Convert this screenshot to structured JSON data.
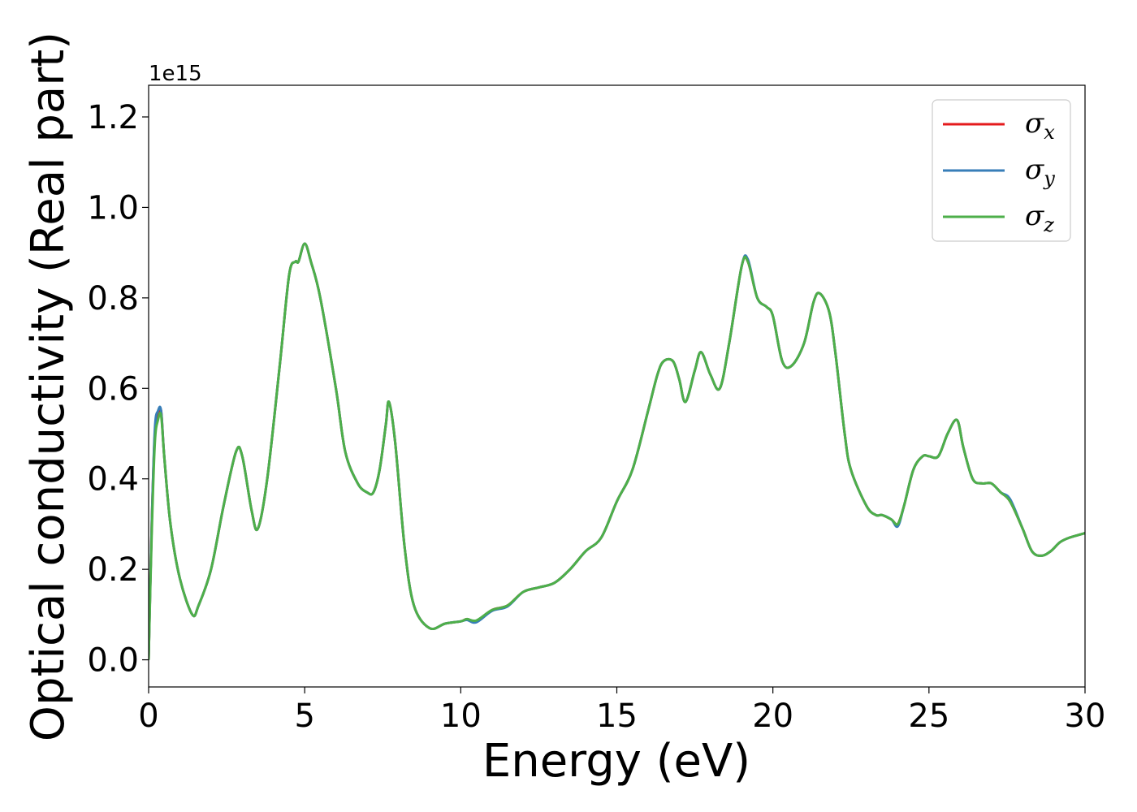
{
  "chart_data": {
    "type": "line",
    "title": "",
    "xlabel": "Energy (eV)",
    "ylabel": "Optical conductivity (Real part)",
    "y_offset_label": "1e15",
    "xlim": [
      0,
      30
    ],
    "ylim": [
      -0.06,
      1.27
    ],
    "x_ticks": [
      0,
      5,
      10,
      15,
      20,
      25,
      30
    ],
    "x_tick_labels": [
      "0",
      "5",
      "10",
      "15",
      "20",
      "25",
      "30"
    ],
    "y_ticks": [
      0.0,
      0.2,
      0.4,
      0.6,
      0.8,
      1.0,
      1.2
    ],
    "y_tick_labels": [
      "0.0",
      "0.2",
      "0.4",
      "0.6",
      "0.8",
      "1.0",
      "1.2"
    ],
    "grid": false,
    "legend_position": "top-right",
    "series": [
      {
        "name": "σ",
        "subscript": "x",
        "color": "#e41a1c",
        "x": [
          0,
          0.1,
          0.2,
          0.3,
          0.4,
          0.5,
          0.7,
          1.0,
          1.4,
          1.6,
          2.0,
          2.4,
          2.8,
          3.0,
          3.3,
          3.5,
          3.8,
          4.2,
          4.5,
          4.7,
          4.8,
          5.0,
          5.2,
          5.5,
          6.0,
          6.3,
          6.7,
          7.0,
          7.2,
          7.4,
          7.6,
          7.7,
          7.9,
          8.2,
          8.5,
          9.0,
          9.5,
          10.0,
          10.2,
          10.5,
          11.0,
          11.5,
          12.0,
          12.5,
          13.0,
          13.5,
          14.0,
          14.5,
          15.0,
          15.5,
          16.0,
          16.3,
          16.5,
          16.8,
          17.0,
          17.2,
          17.5,
          17.7,
          18.0,
          18.3,
          18.6,
          19.0,
          19.2,
          19.5,
          19.8,
          20.0,
          20.3,
          20.6,
          21.0,
          21.3,
          21.5,
          21.8,
          22.0,
          22.3,
          22.5,
          23.0,
          23.3,
          23.5,
          23.8,
          24.0,
          24.2,
          24.5,
          24.8,
          25.0,
          25.3,
          25.6,
          25.9,
          26.1,
          26.4,
          26.7,
          27.0,
          27.3,
          27.6,
          28.0,
          28.3,
          28.6,
          28.9,
          29.2,
          29.5,
          30.0
        ],
        "y": [
          0.0,
          0.3,
          0.5,
          0.54,
          0.55,
          0.45,
          0.3,
          0.18,
          0.1,
          0.12,
          0.2,
          0.34,
          0.46,
          0.45,
          0.33,
          0.29,
          0.4,
          0.65,
          0.85,
          0.88,
          0.88,
          0.92,
          0.88,
          0.8,
          0.6,
          0.46,
          0.39,
          0.37,
          0.37,
          0.42,
          0.52,
          0.57,
          0.48,
          0.25,
          0.12,
          0.07,
          0.08,
          0.085,
          0.09,
          0.085,
          0.11,
          0.12,
          0.15,
          0.16,
          0.17,
          0.2,
          0.24,
          0.27,
          0.35,
          0.42,
          0.55,
          0.63,
          0.66,
          0.66,
          0.62,
          0.57,
          0.64,
          0.68,
          0.63,
          0.6,
          0.7,
          0.87,
          0.88,
          0.8,
          0.78,
          0.76,
          0.66,
          0.65,
          0.7,
          0.79,
          0.81,
          0.77,
          0.68,
          0.5,
          0.42,
          0.34,
          0.32,
          0.32,
          0.31,
          0.3,
          0.34,
          0.42,
          0.45,
          0.45,
          0.45,
          0.5,
          0.53,
          0.47,
          0.4,
          0.39,
          0.39,
          0.37,
          0.35,
          0.29,
          0.24,
          0.23,
          0.24,
          0.26,
          0.27,
          0.28
        ]
      },
      {
        "name": "σ",
        "subscript": "y",
        "color": "#377eb8",
        "x": [
          0,
          0.1,
          0.2,
          0.3,
          0.4,
          0.5,
          0.7,
          1.0,
          1.4,
          1.6,
          2.0,
          2.4,
          2.8,
          3.0,
          3.3,
          3.5,
          3.8,
          4.2,
          4.5,
          4.7,
          4.8,
          5.0,
          5.2,
          5.5,
          6.0,
          6.3,
          6.7,
          7.0,
          7.2,
          7.4,
          7.6,
          7.7,
          7.9,
          8.2,
          8.5,
          9.0,
          9.5,
          10.0,
          10.2,
          10.5,
          11.0,
          11.5,
          12.0,
          12.5,
          13.0,
          13.5,
          14.0,
          14.5,
          15.0,
          15.5,
          16.0,
          16.3,
          16.5,
          16.8,
          17.0,
          17.2,
          17.5,
          17.7,
          18.0,
          18.3,
          18.6,
          19.0,
          19.2,
          19.5,
          19.8,
          20.0,
          20.3,
          20.6,
          21.0,
          21.3,
          21.5,
          21.8,
          22.0,
          22.3,
          22.5,
          23.0,
          23.3,
          23.5,
          23.8,
          24.0,
          24.2,
          24.5,
          24.8,
          25.0,
          25.3,
          25.6,
          25.9,
          26.1,
          26.4,
          26.7,
          27.0,
          27.3,
          27.6,
          28.0,
          28.3,
          28.6,
          28.9,
          29.2,
          29.5,
          30.0
        ],
        "y": [
          0.0,
          0.3,
          0.51,
          0.55,
          0.55,
          0.45,
          0.3,
          0.18,
          0.1,
          0.12,
          0.2,
          0.34,
          0.46,
          0.45,
          0.33,
          0.29,
          0.4,
          0.65,
          0.85,
          0.88,
          0.88,
          0.92,
          0.88,
          0.8,
          0.6,
          0.46,
          0.39,
          0.37,
          0.37,
          0.42,
          0.52,
          0.57,
          0.48,
          0.25,
          0.12,
          0.07,
          0.08,
          0.085,
          0.088,
          0.083,
          0.108,
          0.118,
          0.15,
          0.16,
          0.17,
          0.2,
          0.24,
          0.27,
          0.35,
          0.42,
          0.55,
          0.63,
          0.66,
          0.66,
          0.62,
          0.57,
          0.64,
          0.68,
          0.63,
          0.6,
          0.7,
          0.87,
          0.885,
          0.8,
          0.78,
          0.76,
          0.66,
          0.65,
          0.7,
          0.79,
          0.81,
          0.77,
          0.68,
          0.5,
          0.42,
          0.34,
          0.32,
          0.32,
          0.31,
          0.295,
          0.34,
          0.42,
          0.45,
          0.45,
          0.45,
          0.5,
          0.53,
          0.47,
          0.4,
          0.39,
          0.39,
          0.37,
          0.355,
          0.29,
          0.24,
          0.23,
          0.24,
          0.26,
          0.27,
          0.28
        ]
      },
      {
        "name": "σ",
        "subscript": "z",
        "color": "#4daf4a",
        "x": [
          0,
          0.1,
          0.2,
          0.3,
          0.4,
          0.5,
          0.7,
          1.0,
          1.4,
          1.6,
          2.0,
          2.4,
          2.8,
          3.0,
          3.3,
          3.5,
          3.8,
          4.2,
          4.5,
          4.7,
          4.8,
          5.0,
          5.2,
          5.5,
          6.0,
          6.3,
          6.7,
          7.0,
          7.2,
          7.4,
          7.6,
          7.7,
          7.9,
          8.2,
          8.5,
          9.0,
          9.5,
          10.0,
          10.2,
          10.5,
          11.0,
          11.5,
          12.0,
          12.5,
          13.0,
          13.5,
          14.0,
          14.5,
          15.0,
          15.5,
          16.0,
          16.3,
          16.5,
          16.8,
          17.0,
          17.2,
          17.5,
          17.7,
          18.0,
          18.3,
          18.6,
          19.0,
          19.2,
          19.5,
          19.8,
          20.0,
          20.3,
          20.6,
          21.0,
          21.3,
          21.5,
          21.8,
          22.0,
          22.3,
          22.5,
          23.0,
          23.3,
          23.5,
          23.8,
          24.0,
          24.2,
          24.5,
          24.8,
          25.0,
          25.3,
          25.6,
          25.9,
          26.1,
          26.4,
          26.7,
          27.0,
          27.3,
          27.6,
          28.0,
          28.3,
          28.6,
          28.9,
          29.2,
          29.5,
          30.0
        ],
        "y": [
          0.0,
          0.28,
          0.48,
          0.53,
          0.54,
          0.45,
          0.3,
          0.18,
          0.1,
          0.12,
          0.2,
          0.34,
          0.46,
          0.45,
          0.33,
          0.29,
          0.4,
          0.65,
          0.85,
          0.88,
          0.88,
          0.92,
          0.88,
          0.8,
          0.6,
          0.46,
          0.39,
          0.37,
          0.37,
          0.42,
          0.52,
          0.57,
          0.48,
          0.25,
          0.12,
          0.07,
          0.08,
          0.085,
          0.09,
          0.087,
          0.11,
          0.12,
          0.15,
          0.16,
          0.17,
          0.2,
          0.24,
          0.27,
          0.35,
          0.42,
          0.55,
          0.63,
          0.66,
          0.66,
          0.62,
          0.57,
          0.64,
          0.68,
          0.63,
          0.6,
          0.7,
          0.87,
          0.88,
          0.8,
          0.78,
          0.76,
          0.66,
          0.65,
          0.7,
          0.79,
          0.81,
          0.77,
          0.68,
          0.5,
          0.42,
          0.34,
          0.32,
          0.32,
          0.31,
          0.3,
          0.34,
          0.42,
          0.45,
          0.45,
          0.45,
          0.5,
          0.53,
          0.47,
          0.4,
          0.39,
          0.39,
          0.37,
          0.35,
          0.29,
          0.24,
          0.23,
          0.24,
          0.26,
          0.27,
          0.28
        ]
      }
    ]
  }
}
